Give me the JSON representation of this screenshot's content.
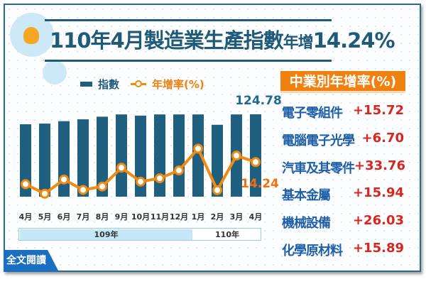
{
  "title": {
    "main": "110年4月製造業生產指數",
    "suffix_small": "年增",
    "suffix_big": "14.24%"
  },
  "legend": {
    "bars": "指數",
    "line": "年增率(%)"
  },
  "chart_data": {
    "type": "bar+line",
    "categories": [
      "4月",
      "5月",
      "6月",
      "7月",
      "8月",
      "9月",
      "10月",
      "11月",
      "12月",
      "1月",
      "2月",
      "3月",
      "4月"
    ],
    "year_groups": [
      {
        "label": "109年",
        "months": 9
      },
      {
        "label": "110年",
        "months": 4
      }
    ],
    "series": [
      {
        "name": "指數",
        "type": "bar",
        "color": "#1f6080",
        "values": [
          109.7,
          110.7,
          114.4,
          117.2,
          121.2,
          124.6,
          122.8,
          124.6,
          124.6,
          124.6,
          108.9,
          124.6,
          124.78
        ]
      },
      {
        "name": "年增率(%)",
        "type": "line",
        "color": "#f08a10",
        "values": [
          3.8,
          -0.7,
          6.0,
          1.1,
          2.7,
          11.6,
          5.0,
          6.6,
          10.3,
          20.6,
          1.0,
          17.3,
          14.24
        ]
      }
    ],
    "data_labels": {
      "bar_last": "124.78",
      "line_last": "14.24"
    }
  },
  "panel": {
    "header": "中業別年增率(%)",
    "rows": [
      {
        "name": "電子零組件",
        "value": "+15.72"
      },
      {
        "name": "電腦電子光學",
        "value": "+6.70"
      },
      {
        "name": "汽車及其零件",
        "value": "+33.76"
      },
      {
        "name": "基本金屬",
        "value": "+15.94"
      },
      {
        "name": "機械設備",
        "value": "+26.03"
      },
      {
        "name": "化學原材料",
        "value": "+15.89"
      }
    ]
  },
  "read_more": "全文閱讀",
  "colors": {
    "title": "#1f5a78",
    "bar": "#1f6080",
    "line": "#f08a10",
    "header_bg": "#f08010",
    "value": "#d8261e",
    "name": "#1f5fa8"
  }
}
